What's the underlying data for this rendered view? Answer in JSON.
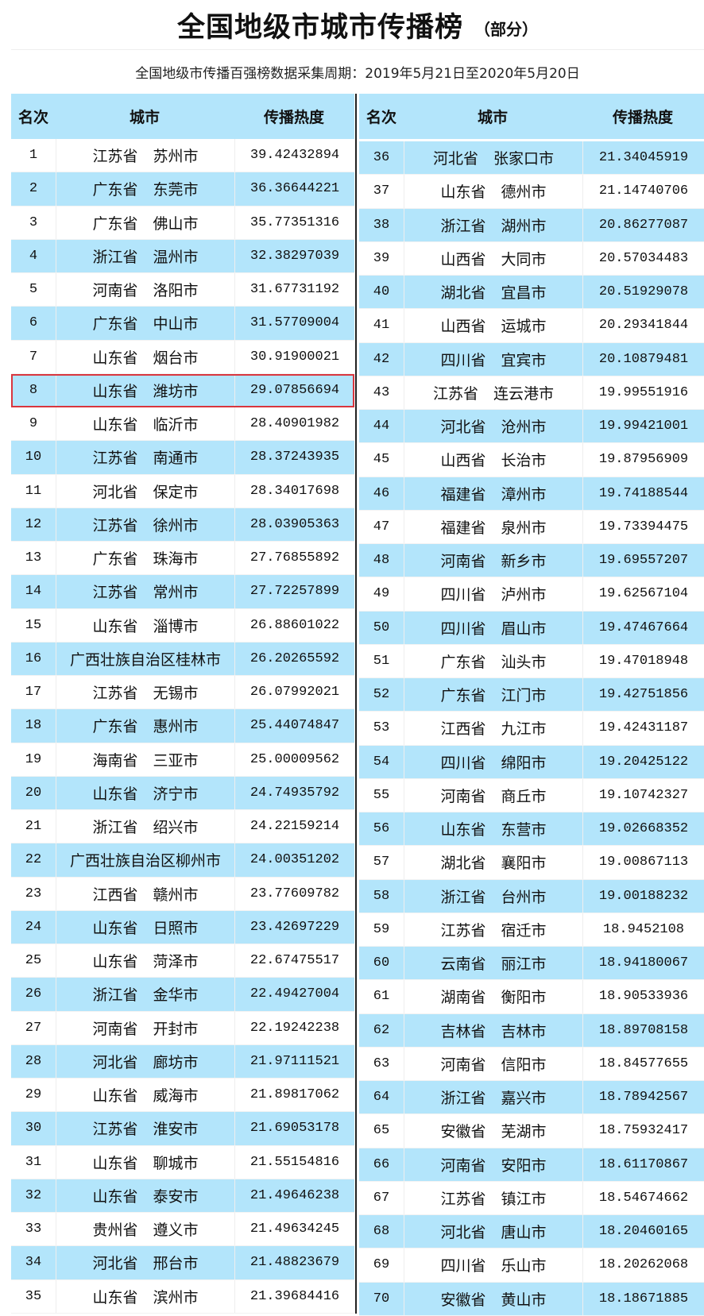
{
  "title": {
    "main": "全国地级市城市传播榜",
    "sub": "（部分）"
  },
  "subtitle": "全国地级市传播百强榜数据采集周期：2019年5月21日至2020年5月20日",
  "headers": {
    "rank": "名次",
    "city": "城市",
    "heat": "传播热度"
  },
  "colors": {
    "header_bg": "#b3e5fb",
    "stripe": "#b3e5fb",
    "highlight_border": "#d9363e"
  },
  "highlight_rank": "8",
  "left_rows": [
    [
      "1",
      "江苏省　苏州市",
      "39.42432894"
    ],
    [
      "2",
      "广东省　东莞市",
      "36.36644221"
    ],
    [
      "3",
      "广东省　佛山市",
      "35.77351316"
    ],
    [
      "4",
      "浙江省　温州市",
      "32.38297039"
    ],
    [
      "5",
      "河南省　洛阳市",
      "31.67731192"
    ],
    [
      "6",
      "广东省　中山市",
      "31.57709004"
    ],
    [
      "7",
      "山东省　烟台市",
      "30.91900021"
    ],
    [
      "8",
      "山东省　潍坊市",
      "29.07856694"
    ],
    [
      "9",
      "山东省　临沂市",
      "28.40901982"
    ],
    [
      "10",
      "江苏省　南通市",
      "28.37243935"
    ],
    [
      "11",
      "河北省　保定市",
      "28.34017698"
    ],
    [
      "12",
      "江苏省　徐州市",
      "28.03905363"
    ],
    [
      "13",
      "广东省　珠海市",
      "27.76855892"
    ],
    [
      "14",
      "江苏省　常州市",
      "27.72257899"
    ],
    [
      "15",
      "山东省　淄博市",
      "26.88601022"
    ],
    [
      "16",
      "广西壮族自治区桂林市",
      "26.20265592"
    ],
    [
      "17",
      "江苏省　无锡市",
      "26.07992021"
    ],
    [
      "18",
      "广东省　惠州市",
      "25.44074847"
    ],
    [
      "19",
      "海南省　三亚市",
      "25.00009562"
    ],
    [
      "20",
      "山东省　济宁市",
      "24.74935792"
    ],
    [
      "21",
      "浙江省　绍兴市",
      "24.22159214"
    ],
    [
      "22",
      "广西壮族自治区柳州市",
      "24.00351202"
    ],
    [
      "23",
      "江西省　赣州市",
      "23.77609782"
    ],
    [
      "24",
      "山东省　日照市",
      "23.42697229"
    ],
    [
      "25",
      "山东省　菏泽市",
      "22.67475517"
    ],
    [
      "26",
      "浙江省　金华市",
      "22.49427004"
    ],
    [
      "27",
      "河南省　开封市",
      "22.19242238"
    ],
    [
      "28",
      "河北省　廊坊市",
      "21.97111521"
    ],
    [
      "29",
      "山东省　威海市",
      "21.89817062"
    ],
    [
      "30",
      "江苏省　淮安市",
      "21.69053178"
    ],
    [
      "31",
      "山东省　聊城市",
      "21.55154816"
    ],
    [
      "32",
      "山东省　泰安市",
      "21.49646238"
    ],
    [
      "33",
      "贵州省　遵义市",
      "21.49634245"
    ],
    [
      "34",
      "河北省　邢台市",
      "21.48823679"
    ],
    [
      "35",
      "山东省　滨州市",
      "21.39684416"
    ]
  ],
  "right_rows": [
    [
      "36",
      "河北省　张家口市",
      "21.34045919"
    ],
    [
      "37",
      "山东省　德州市",
      "21.14740706"
    ],
    [
      "38",
      "浙江省　湖州市",
      "20.86277087"
    ],
    [
      "39",
      "山西省　大同市",
      "20.57034483"
    ],
    [
      "40",
      "湖北省　宜昌市",
      "20.51929078"
    ],
    [
      "41",
      "山西省　运城市",
      "20.29341844"
    ],
    [
      "42",
      "四川省　宜宾市",
      "20.10879481"
    ],
    [
      "43",
      "江苏省　连云港市",
      "19.99551916"
    ],
    [
      "44",
      "河北省　沧州市",
      "19.99421001"
    ],
    [
      "45",
      "山西省　长治市",
      "19.87956909"
    ],
    [
      "46",
      "福建省　漳州市",
      "19.74188544"
    ],
    [
      "47",
      "福建省　泉州市",
      "19.73394475"
    ],
    [
      "48",
      "河南省　新乡市",
      "19.69557207"
    ],
    [
      "49",
      "四川省　泸州市",
      "19.62567104"
    ],
    [
      "50",
      "四川省　眉山市",
      "19.47467664"
    ],
    [
      "51",
      "广东省　汕头市",
      "19.47018948"
    ],
    [
      "52",
      "广东省　江门市",
      "19.42751856"
    ],
    [
      "53",
      "江西省　九江市",
      "19.42431187"
    ],
    [
      "54",
      "四川省　绵阳市",
      "19.20425122"
    ],
    [
      "55",
      "河南省　商丘市",
      "19.10742327"
    ],
    [
      "56",
      "山东省　东营市",
      "19.02668352"
    ],
    [
      "57",
      "湖北省　襄阳市",
      "19.00867113"
    ],
    [
      "58",
      "浙江省　台州市",
      "19.00188232"
    ],
    [
      "59",
      "江苏省　宿迁市",
      "18.9452108"
    ],
    [
      "60",
      "云南省　丽江市",
      "18.94180067"
    ],
    [
      "61",
      "湖南省　衡阳市",
      "18.90533936"
    ],
    [
      "62",
      "吉林省　吉林市",
      "18.89708158"
    ],
    [
      "63",
      "河南省　信阳市",
      "18.84577655"
    ],
    [
      "64",
      "浙江省　嘉兴市",
      "18.78942567"
    ],
    [
      "65",
      "安徽省　芜湖市",
      "18.75932417"
    ],
    [
      "66",
      "河南省　安阳市",
      "18.61170867"
    ],
    [
      "67",
      "江苏省　镇江市",
      "18.54674662"
    ],
    [
      "68",
      "河北省　唐山市",
      "18.20460165"
    ],
    [
      "69",
      "四川省　乐山市",
      "18.20262068"
    ],
    [
      "70",
      "安徽省　黄山市",
      "18.18671885"
    ]
  ]
}
